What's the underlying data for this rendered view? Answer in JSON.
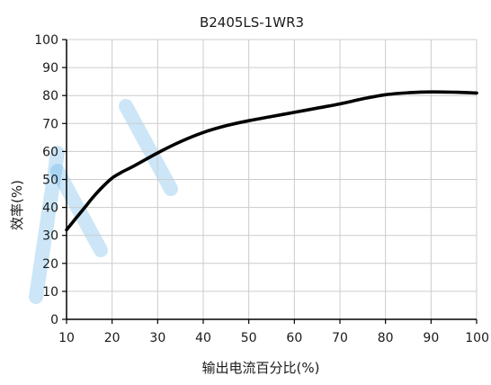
{
  "chart_data": {
    "type": "line",
    "title": "B2405LS-1WR3",
    "xlabel": "输出电流百分比(%)",
    "ylabel": "效率(%)",
    "xlim": [
      10,
      100
    ],
    "ylim": [
      0,
      100
    ],
    "xticks": [
      10,
      20,
      30,
      40,
      50,
      60,
      70,
      80,
      90,
      100
    ],
    "yticks": [
      0,
      10,
      20,
      30,
      40,
      50,
      60,
      70,
      80,
      90,
      100
    ],
    "grid": true,
    "series": [
      {
        "x": [
          10,
          12,
          14,
          16,
          18,
          20,
          22,
          25,
          30,
          35,
          40,
          45,
          50,
          55,
          60,
          65,
          70,
          75,
          80,
          85,
          90,
          95,
          100
        ],
        "y": [
          32,
          36,
          40,
          44,
          47.5,
          50.5,
          52.5,
          55,
          59.5,
          63.5,
          66.8,
          69.2,
          71.0,
          72.5,
          74.0,
          75.5,
          77.0,
          78.8,
          80.3,
          81.0,
          81.3,
          81.2,
          80.9
        ]
      }
    ],
    "colors": {
      "line": "#000000",
      "grid": "#cccccc",
      "axis": "#000000",
      "watermark": "#4aa9e8"
    }
  }
}
